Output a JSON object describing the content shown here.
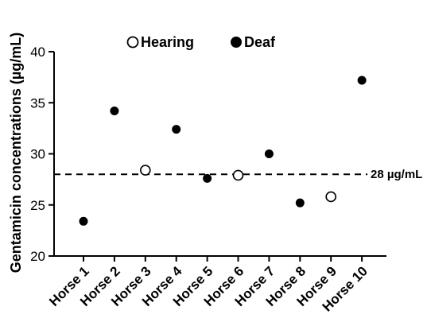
{
  "chart_data": {
    "type": "scatter",
    "title": "",
    "xlabel": "",
    "ylabel": "Gentamicin concentrations (µg/mL)",
    "ylim": [
      20,
      40
    ],
    "yticks": [
      20,
      25,
      30,
      35,
      40
    ],
    "categories": [
      "Horse 1",
      "Horse 2",
      "Horse 3",
      "Horse 4",
      "Horse 5",
      "Horse 6",
      "Horse 7",
      "Horse 8",
      "Horse 9",
      "Horse 10"
    ],
    "series": [
      {
        "name": "Hearing",
        "marker": "open-circle",
        "points": [
          {
            "x": "Horse 3",
            "y": 28.4
          },
          {
            "x": "Horse 6",
            "y": 27.9
          },
          {
            "x": "Horse 9",
            "y": 25.8
          }
        ]
      },
      {
        "name": "Deaf",
        "marker": "filled-circle",
        "points": [
          {
            "x": "Horse 1",
            "y": 23.4
          },
          {
            "x": "Horse 2",
            "y": 34.2
          },
          {
            "x": "Horse 4",
            "y": 32.4
          },
          {
            "x": "Horse 5",
            "y": 27.6
          },
          {
            "x": "Horse 7",
            "y": 30.0
          },
          {
            "x": "Horse 8",
            "y": 25.2
          },
          {
            "x": "Horse 10",
            "y": 37.2
          }
        ]
      }
    ],
    "reference_line": {
      "y": 28,
      "style": "dashed",
      "label": "28 µg/mL"
    },
    "grid": false,
    "legend_position": "top"
  },
  "colors": {
    "marker": "#000000",
    "axis": "#000000",
    "background": "#ffffff"
  }
}
